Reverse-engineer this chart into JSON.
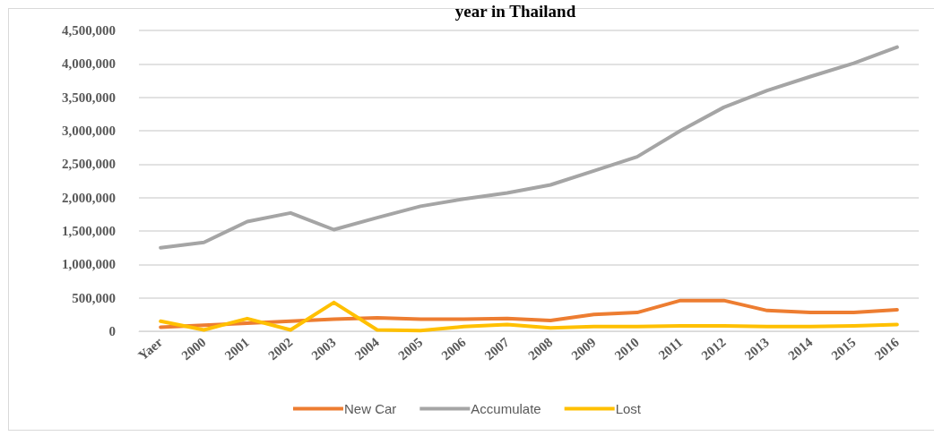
{
  "chart_data": {
    "type": "line",
    "title": "year in Thailand",
    "categories": [
      "Yaer",
      "2000",
      "2001",
      "2002",
      "2003",
      "2004",
      "2005",
      "2006",
      "2007",
      "2008",
      "2009",
      "2010",
      "2011",
      "2012",
      "2013",
      "2014",
      "2015",
      "2016"
    ],
    "series": [
      {
        "name": "New Car",
        "color": "#ed7d31",
        "values": [
          60000,
          90000,
          120000,
          150000,
          180000,
          200000,
          180000,
          180000,
          190000,
          160000,
          250000,
          280000,
          460000,
          460000,
          310000,
          280000,
          280000,
          320000
        ]
      },
      {
        "name": "Accumulate",
        "color": "#a5a5a5",
        "values": [
          1250000,
          1330000,
          1640000,
          1770000,
          1520000,
          1700000,
          1870000,
          1980000,
          2070000,
          2190000,
          2400000,
          2610000,
          3000000,
          3350000,
          3600000,
          3810000,
          4010000,
          4250000
        ]
      },
      {
        "name": "Lost",
        "color": "#ffc000",
        "values": [
          150000,
          20000,
          190000,
          20000,
          430000,
          20000,
          10000,
          70000,
          100000,
          50000,
          70000,
          70000,
          80000,
          80000,
          70000,
          70000,
          80000,
          100000
        ]
      }
    ],
    "ylim": [
      0,
      4500000
    ],
    "yticks": [
      0,
      {
        "value": 500000,
        "label": "500,000"
      },
      {
        "value": 1000000,
        "label": "1,000,000"
      },
      {
        "value": 1500000,
        "label": "1,500,000"
      },
      {
        "value": 2000000,
        "label": "2,000,000"
      },
      {
        "value": 2500000,
        "label": "2,500,000"
      },
      {
        "value": 3000000,
        "label": "3,000,000"
      },
      {
        "value": 3500000,
        "label": "3,500,000"
      },
      {
        "value": 4000000,
        "label": "4,000,000"
      },
      {
        "value": 4500000,
        "label": "4,500,000"
      }
    ],
    "grid": "y",
    "legend": "bottom",
    "marker": "none",
    "line_style": "solid"
  }
}
